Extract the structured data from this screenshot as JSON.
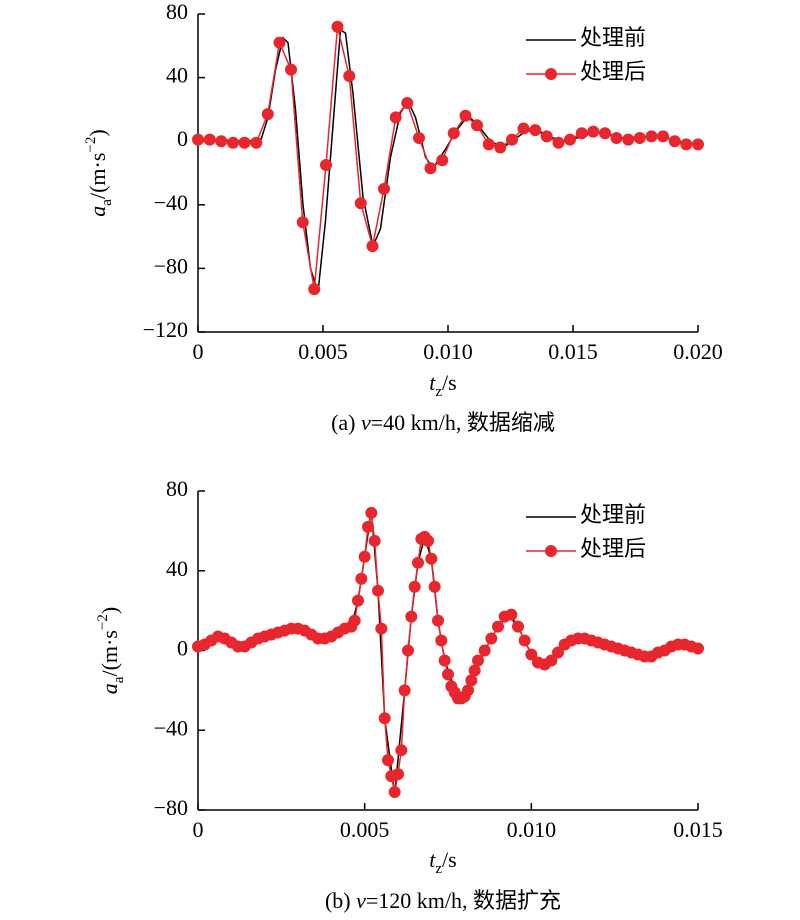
{
  "chart_data": [
    {
      "type": "line",
      "caption_parts": [
        "(a) ",
        "v",
        "=40 km/h, 数据缩减"
      ],
      "xlabel_parts": [
        "t",
        "z",
        "/s"
      ],
      "ylabel_parts": [
        "a",
        "a",
        "/(m·s",
        "−2",
        ")"
      ],
      "xlim": [
        0,
        0.02
      ],
      "ylim": [
        -120,
        80
      ],
      "xticks": [
        0,
        0.005,
        {
          "value": 0.01,
          "label": "0.010"
        },
        0.015,
        {
          "value": 0.02,
          "label": "0.020"
        }
      ],
      "yticks": [
        {
          "value": -120,
          "label": "−120"
        },
        {
          "value": -80,
          "label": "−80"
        },
        {
          "value": -40,
          "label": "−40"
        },
        0,
        40,
        80
      ],
      "legend": "upper right",
      "series": [
        {
          "name": "处理前",
          "color": "#000000",
          "marker": "none",
          "x": [
            0,
            0.0025,
            0.0028,
            0.0031,
            0.0034,
            0.0036,
            0.0039,
            0.0042,
            0.0045,
            0.0048,
            0.0051,
            0.0054,
            0.0057,
            0.0059,
            0.0062,
            0.0066,
            0.007,
            0.0073,
            0.0077,
            0.0081,
            0.0084,
            0.0087,
            0.0091,
            0.0094,
            0.0099,
            0.0104,
            0.0108,
            0.0112,
            0.0117,
            0.0122,
            0.013,
            0.0135,
            0.014,
            0.0147,
            0.016,
            0.017,
            0.018,
            0.0185,
            0.0195,
            0.02
          ],
          "values": [
            1,
            0,
            15,
            45,
            65,
            62,
            20,
            -40,
            -80,
            -95,
            -50,
            10,
            70,
            68,
            30,
            -35,
            -66,
            -55,
            -10,
            18,
            25,
            15,
            -10,
            -17,
            -5,
            8,
            16,
            10,
            0,
            -4,
            5,
            8,
            3,
            0,
            6,
            2,
            3,
            3,
            -1,
            -2
          ]
        },
        {
          "name": "处理后",
          "color": "#e8262e",
          "marker": "circle",
          "x": [
            0,
            0.00047,
            0.00093,
            0.0014,
            0.00186,
            0.00233,
            0.00279,
            0.00326,
            0.00372,
            0.00419,
            0.00465,
            0.00512,
            0.00558,
            0.00605,
            0.00651,
            0.00698,
            0.00744,
            0.00791,
            0.00837,
            0.00884,
            0.0093,
            0.00977,
            0.01023,
            0.0107,
            0.01116,
            0.01163,
            0.01209,
            0.01256,
            0.01302,
            0.01349,
            0.01395,
            0.01442,
            0.01488,
            0.01535,
            0.01581,
            0.01628,
            0.01674,
            0.01721,
            0.01767,
            0.01814,
            0.0186,
            0.01907,
            0.01953,
            0.02
          ],
          "values": [
            1,
            1,
            0,
            -1,
            -1,
            -1,
            17,
            62,
            45,
            -51,
            -93,
            -15,
            72,
            41,
            -39,
            -66,
            -30,
            15,
            24,
            2,
            -17,
            -12,
            5,
            16,
            10,
            -2,
            -4,
            1,
            8,
            7,
            3,
            -1,
            1,
            5,
            6,
            5,
            2,
            1,
            2,
            3,
            3,
            0,
            -2,
            -2
          ]
        }
      ]
    },
    {
      "type": "line",
      "caption_parts": [
        "(b) ",
        "v",
        "=120 km/h, 数据扩充"
      ],
      "xlabel_parts": [
        "t",
        "z",
        "/s"
      ],
      "ylabel_parts": [
        "a",
        "a",
        "/(m·s",
        "−2",
        ")"
      ],
      "xlim": [
        0,
        0.015
      ],
      "ylim": [
        -80,
        80
      ],
      "xticks": [
        0,
        0.005,
        {
          "value": 0.01,
          "label": "0.010"
        },
        0.015
      ],
      "yticks": [
        {
          "value": -80,
          "label": "−80"
        },
        {
          "value": -40,
          "label": "−40"
        },
        0,
        40,
        80
      ],
      "legend": "upper right",
      "series": [
        {
          "name": "处理前",
          "color": "#000000",
          "marker": "none",
          "x": [
            0,
            0.0006,
            0.0013,
            0.003,
            0.0038,
            0.0044,
            0.0046,
            0.0048,
            0.005,
            0.0052,
            0.0054,
            0.0056,
            0.0059,
            0.0062,
            0.0064,
            0.0066,
            0.0068,
            0.007,
            0.0072,
            0.0074,
            0.0078,
            0.0082,
            0.0086,
            0.009,
            0.0093,
            0.0096,
            0.01,
            0.0104,
            0.0108,
            0.0114,
            0.012,
            0.0128,
            0.0136,
            0.014,
            0.0145,
            0.015
          ],
          "values": [
            2,
            7,
            2,
            11,
            6,
            11,
            12,
            25,
            47,
            70,
            30,
            -34,
            -72,
            -20,
            17,
            44,
            57,
            46,
            15,
            -5,
            -24,
            -15,
            0,
            12,
            18,
            12,
            -2,
            -7,
            -1,
            6,
            4,
            0,
            -3,
            0,
            3,
            1
          ]
        },
        {
          "name": "处理后",
          "color": "#e8262e",
          "marker": "circle",
          "x": [
            0,
            0.0002,
            0.0004,
            0.0006,
            0.0008,
            0.001,
            0.0012,
            0.0014,
            0.0016,
            0.0018,
            0.002,
            0.0022,
            0.0024,
            0.0026,
            0.0028,
            0.003,
            0.0032,
            0.0034,
            0.0036,
            0.0038,
            0.004,
            0.0042,
            0.0044,
            0.0046,
            0.0047,
            0.0048,
            0.0049,
            0.005,
            0.0051,
            0.0052,
            0.0053,
            0.0054,
            0.0055,
            0.0056,
            0.0057,
            0.0058,
            0.0059,
            0.006,
            0.0061,
            0.0062,
            0.0063,
            0.0064,
            0.0065,
            0.0066,
            0.0067,
            0.0068,
            0.0069,
            0.007,
            0.0071,
            0.0072,
            0.0073,
            0.0074,
            0.0075,
            0.0076,
            0.0077,
            0.0078,
            0.0079,
            0.008,
            0.0081,
            0.0082,
            0.0083,
            0.0084,
            0.0086,
            0.0088,
            0.009,
            0.0092,
            0.0094,
            0.0096,
            0.0098,
            0.01,
            0.0102,
            0.0104,
            0.0106,
            0.0108,
            0.011,
            0.0112,
            0.0114,
            0.0116,
            0.0118,
            0.012,
            0.0122,
            0.0124,
            0.0126,
            0.0128,
            0.013,
            0.0132,
            0.0134,
            0.0136,
            0.0138,
            0.014,
            0.0142,
            0.0144,
            0.0146,
            0.0148,
            0.015
          ],
          "values": [
            2,
            3,
            5,
            7,
            6,
            4,
            2,
            2,
            4,
            6,
            7,
            8,
            9,
            10,
            11,
            11,
            10,
            8,
            6,
            6,
            7,
            9,
            11,
            12,
            15,
            25,
            36,
            47,
            62,
            69,
            55,
            30,
            11,
            -34,
            -55,
            -63,
            -71,
            -62,
            -50,
            -20,
            0,
            17,
            32,
            44,
            56,
            57,
            55,
            46,
            32,
            15,
            5,
            -5,
            -12,
            -18,
            -21,
            -24,
            -24,
            -23,
            -20,
            -15,
            -10,
            -5,
            0,
            6,
            12,
            17,
            18,
            12,
            5,
            -2,
            -6,
            -7,
            -5,
            -1,
            3,
            5,
            6,
            6,
            5,
            4,
            3,
            2,
            1,
            0,
            -1,
            -2,
            -3,
            -3,
            -1,
            0,
            2,
            3,
            3,
            2,
            1
          ]
        }
      ]
    }
  ]
}
